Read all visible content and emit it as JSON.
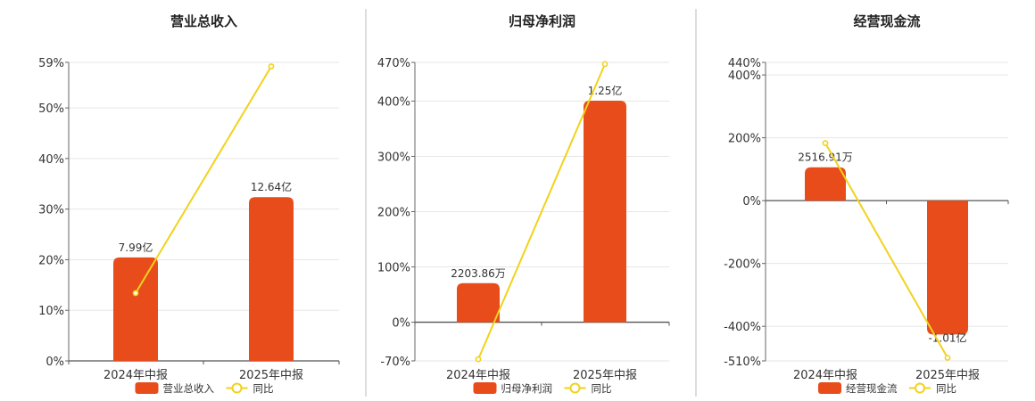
{
  "colors": {
    "bar": "#e84c1b",
    "line": "#f2d21c",
    "grid": "#e6e6e6",
    "axis": "#666666",
    "separator": "#bbbbbb"
  },
  "chart_data": [
    {
      "type": "bar+line",
      "title": "营业总收入",
      "categories": [
        "2024年中报",
        "2025年中报"
      ],
      "bar_series": {
        "name": "营业总收入",
        "values": [
          7.99,
          12.64
        ],
        "labels": [
          "7.99亿",
          "12.64亿"
        ],
        "unit": "亿"
      },
      "line_series": {
        "name": "同比",
        "values": [
          13.4,
          58.2
        ],
        "unit": "%"
      },
      "ylim": [
        0,
        59
      ],
      "yticks": [
        0,
        10,
        20,
        30,
        40,
        50,
        59
      ],
      "ytick_labels": [
        "0%",
        "10%",
        "20%",
        "30%",
        "40%",
        "50%",
        "59%"
      ],
      "bar_scale_per_pct": 0.3905,
      "grid": true,
      "legend": "bottom"
    },
    {
      "type": "bar+line",
      "title": "归母净利润",
      "categories": [
        "2024年中报",
        "2025年中报"
      ],
      "bar_series": {
        "name": "归母净利润",
        "values": [
          0.2204,
          1.25
        ],
        "labels": [
          "2203.86万",
          "1.25亿"
        ],
        "unit": "亿"
      },
      "line_series": {
        "name": "同比",
        "values": [
          -67,
          467
        ],
        "unit": "%"
      },
      "ylim": [
        -70,
        470
      ],
      "yticks": [
        -70,
        0,
        100,
        200,
        300,
        400,
        470
      ],
      "ytick_labels": [
        "-70%",
        "0%",
        "100%",
        "200%",
        "300%",
        "400%",
        "470%"
      ],
      "bar_scale_per_pct": 0.00312,
      "grid": true,
      "legend": "bottom"
    },
    {
      "type": "bar+line",
      "title": "经营现金流",
      "categories": [
        "2024年中报",
        "2025年中报"
      ],
      "bar_series": {
        "name": "经营现金流",
        "values": [
          0.2517,
          -1.01
        ],
        "labels": [
          "2516.91万",
          "-1.01亿"
        ],
        "unit": "亿"
      },
      "line_series": {
        "name": "同比",
        "values": [
          183,
          -500
        ],
        "unit": "%"
      },
      "ylim": [
        -510,
        440
      ],
      "yticks": [
        -510,
        -400,
        -200,
        0,
        200,
        400,
        440
      ],
      "ytick_labels": [
        "-510%",
        "-400%",
        "-200%",
        "0%",
        "200%",
        "400%",
        "440%"
      ],
      "bar_scale_per_pct": 0.00237,
      "grid": true,
      "legend": "bottom"
    }
  ]
}
